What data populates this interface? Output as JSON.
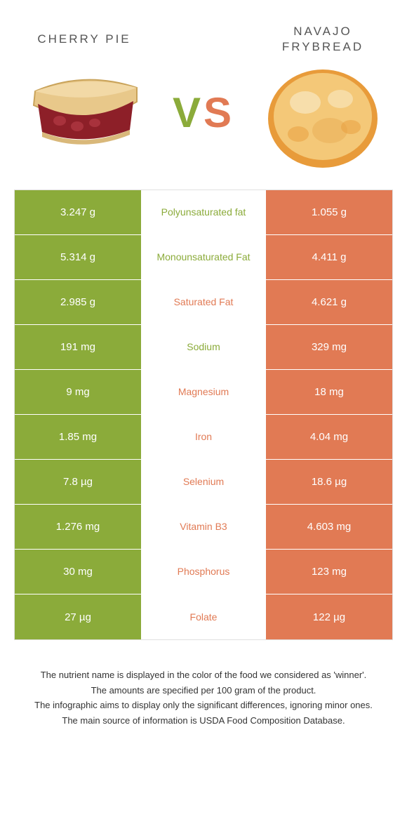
{
  "header": {
    "left_title": "CHERRY PIE",
    "right_title": "NAVAJO FRYBREAD",
    "vs_v": "V",
    "vs_s": "S"
  },
  "colors": {
    "left": "#8bab3a",
    "right": "#e17a54",
    "text": "#333333",
    "border": "#e0e0e0",
    "background": "#ffffff"
  },
  "rows": [
    {
      "left": "3.247 g",
      "label": "Polyunsaturated fat",
      "winner": "left",
      "right": "1.055 g"
    },
    {
      "left": "5.314 g",
      "label": "Monounsaturated Fat",
      "winner": "left",
      "right": "4.411 g"
    },
    {
      "left": "2.985 g",
      "label": "Saturated Fat",
      "winner": "right",
      "right": "4.621 g"
    },
    {
      "left": "191 mg",
      "label": "Sodium",
      "winner": "left",
      "right": "329 mg"
    },
    {
      "left": "9 mg",
      "label": "Magnesium",
      "winner": "right",
      "right": "18 mg"
    },
    {
      "left": "1.85 mg",
      "label": "Iron",
      "winner": "right",
      "right": "4.04 mg"
    },
    {
      "left": "7.8 µg",
      "label": "Selenium",
      "winner": "right",
      "right": "18.6 µg"
    },
    {
      "left": "1.276 mg",
      "label": "Vitamin B3",
      "winner": "right",
      "right": "4.603 mg"
    },
    {
      "left": "30 mg",
      "label": "Phosphorus",
      "winner": "right",
      "right": "123 mg"
    },
    {
      "left": "27 µg",
      "label": "Folate",
      "winner": "right",
      "right": "122 µg"
    }
  ],
  "footer": {
    "line1": "The nutrient name is displayed in the color of the food we considered as 'winner'.",
    "line2": "The amounts are specified per 100 gram of the product.",
    "line3": "The infographic aims to display only the significant differences, ignoring minor ones.",
    "line4": "The main source of information is USDA Food Composition Database."
  }
}
